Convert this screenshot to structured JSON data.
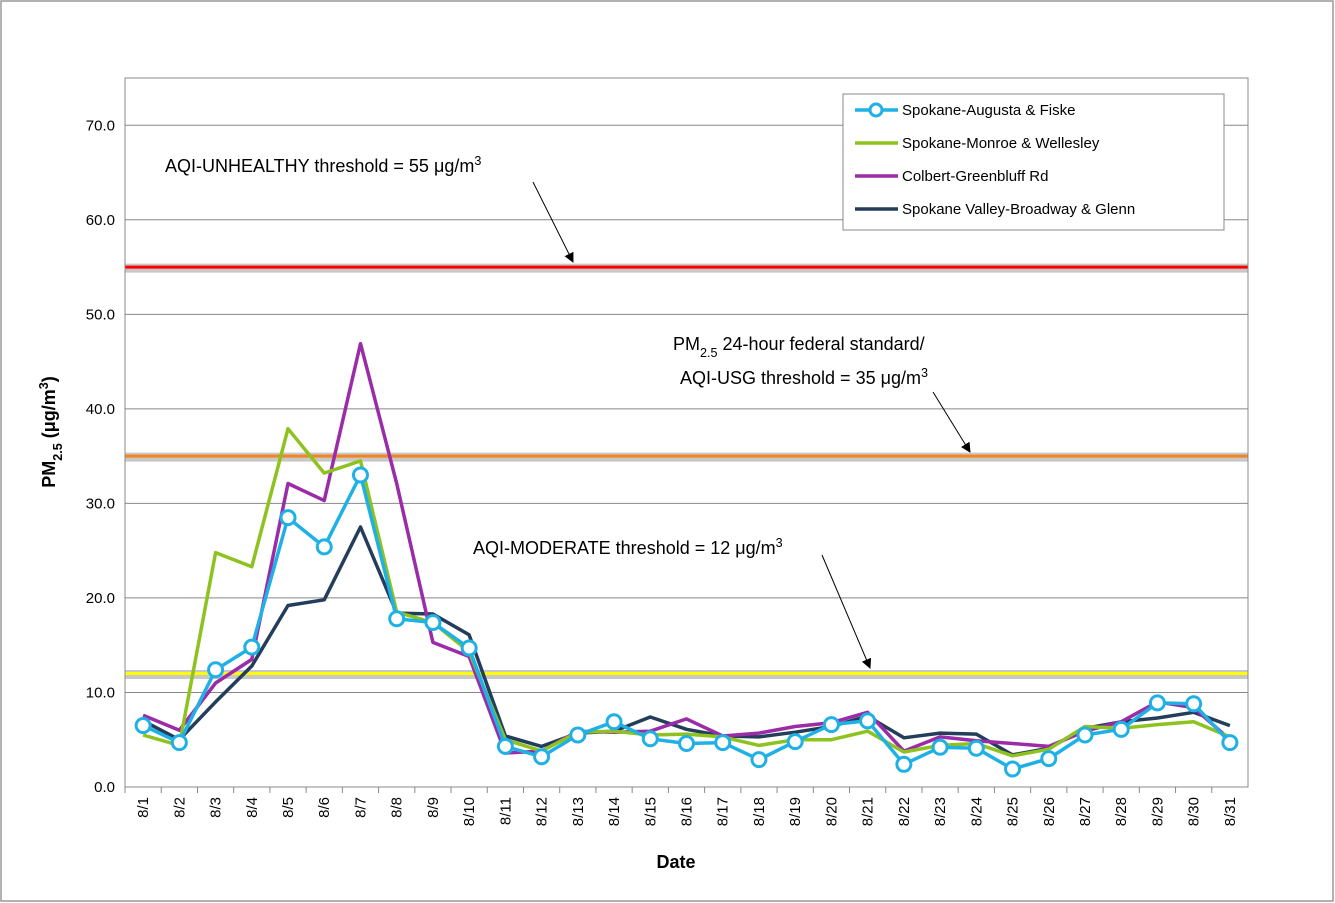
{
  "chart_data": {
    "type": "line",
    "x_label": "Date",
    "y_label": [
      {
        "text": "PM"
      },
      {
        "sub": "2.5"
      },
      {
        "text": " (μg/m"
      },
      {
        "sup": "3"
      },
      {
        "text": ")"
      }
    ],
    "categories": [
      "8/1",
      "8/2",
      "8/3",
      "8/4",
      "8/5",
      "8/6",
      "8/7",
      "8/8",
      "8/9",
      "8/10",
      "8/11",
      "8/12",
      "8/13",
      "8/14",
      "8/15",
      "8/16",
      "8/17",
      "8/18",
      "8/19",
      "8/20",
      "8/21",
      "8/22",
      "8/23",
      "8/24",
      "8/25",
      "8/26",
      "8/27",
      "8/28",
      "8/29",
      "8/30",
      "8/31"
    ],
    "series": [
      {
        "name": "Spokane-Augusta & Fiske",
        "color": "#1fb1e6",
        "marker": "circle",
        "values": [
          6.5,
          4.7,
          12.4,
          14.8,
          28.5,
          25.4,
          33.0,
          17.8,
          17.4,
          14.7,
          4.3,
          3.2,
          5.5,
          6.9,
          5.1,
          4.6,
          4.7,
          2.9,
          4.8,
          6.6,
          7.0,
          2.4,
          4.2,
          4.1,
          1.9,
          3.0,
          5.5,
          6.1,
          8.9,
          8.8,
          4.7
        ]
      },
      {
        "name": "Spokane-Monroe & Wellesley",
        "color": "#8dc21f",
        "values": [
          5.5,
          4.4,
          24.8,
          23.3,
          37.9,
          33.2,
          34.5,
          18.5,
          17.4,
          14.3,
          5.0,
          3.8,
          5.8,
          5.9,
          5.5,
          5.6,
          5.3,
          4.4,
          5.0,
          5.0,
          5.9,
          3.7,
          4.4,
          4.6,
          3.3,
          4.0,
          6.4,
          6.2,
          6.6,
          6.9,
          5.3
        ]
      },
      {
        "name": "Colbert-Greenbluff Rd",
        "color": "#9b2ca8",
        "values": [
          7.6,
          6.0,
          11.0,
          13.5,
          32.1,
          30.3,
          46.9,
          32.1,
          15.3,
          13.8,
          3.6,
          3.8,
          5.9,
          5.8,
          5.9,
          7.2,
          5.4,
          5.7,
          6.4,
          6.8,
          7.9,
          3.8,
          5.3,
          4.9,
          4.6,
          4.3,
          5.9,
          6.9,
          9.0,
          8.4,
          5.0
        ]
      },
      {
        "name": "Spokane Valley-Broadway & Glenn",
        "color": "#233d5a",
        "values": [
          7.0,
          5.0,
          9.0,
          12.8,
          19.2,
          19.8,
          27.5,
          18.4,
          18.3,
          16.1,
          5.4,
          4.3,
          5.7,
          5.9,
          7.4,
          6.1,
          5.4,
          5.3,
          5.8,
          6.4,
          7.5,
          5.2,
          5.7,
          5.6,
          3.4,
          4.1,
          6.2,
          6.9,
          7.3,
          7.9,
          6.5
        ]
      }
    ],
    "ylim": [
      0,
      75
    ],
    "yticks": [
      {
        "value": 0,
        "label": "0.0"
      },
      {
        "value": 10,
        "label": "10.0"
      },
      {
        "value": 20,
        "label": "20.0"
      },
      {
        "value": 30,
        "label": "30.0"
      },
      {
        "value": 40,
        "label": "40.0"
      },
      {
        "value": 50,
        "label": "50.0"
      },
      {
        "value": 60,
        "label": "60.0"
      },
      {
        "value": 70,
        "label": "70.0"
      }
    ],
    "grid": true,
    "legend": "upper right",
    "thresholds": [
      {
        "value": 55,
        "color": "#ff0000"
      },
      {
        "value": 35,
        "color": "#f5841f"
      },
      {
        "value": 12,
        "color": "#ffff00"
      }
    ],
    "annotations": [
      [
        [
          {
            "text": "AQI-UNHEALTHY  threshold = 55 μg/m"
          },
          {
            "sup": "3"
          }
        ]
      ],
      [
        [
          {
            "text": "PM"
          },
          {
            "sub": "2.5"
          },
          {
            "text": " 24-hour federal standard/"
          }
        ],
        [
          {
            "text": "AQI-USG threshold = 35 μg/m"
          },
          {
            "sup": "3"
          }
        ]
      ],
      [
        [
          {
            "text": "AQI-MODERATE threshold = 12 μg/m"
          },
          {
            "sup": "3"
          }
        ]
      ]
    ]
  }
}
